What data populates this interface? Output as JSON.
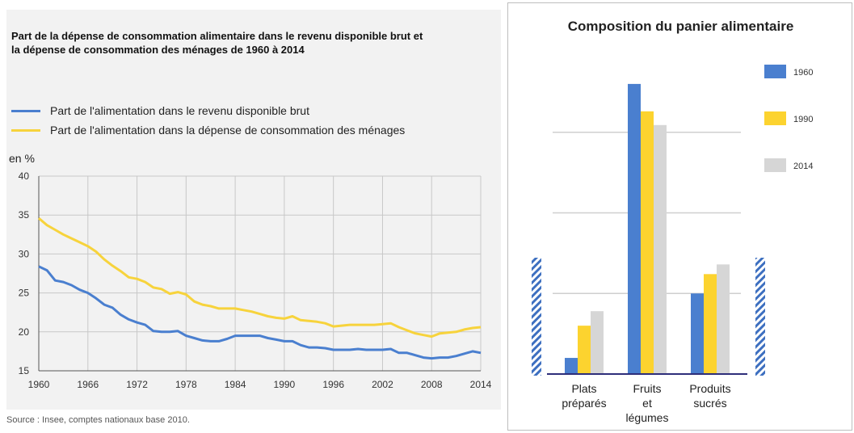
{
  "left_chart": {
    "title": "Part de la dépense de consommation alimentaire dans le revenu disponible brut et la dépense de consommation des ménages de 1960 à 2014",
    "ylabel": "en %",
    "source": "Source : Insee, comptes nationaux base 2010.",
    "colors": {
      "series1": "#4a7fcf",
      "series2": "#f7d33c"
    }
  },
  "right_chart": {
    "title": "Composition du panier alimentaire",
    "colors": {
      "1960": "#4a7fcf",
      "1990": "#fcd32f",
      "2014": "#d6d6d6"
    }
  },
  "chart_data": [
    {
      "type": "line",
      "title": "Part de la dépense de consommation alimentaire dans le revenu disponible brut et la dépense de consommation des ménages de 1960 à 2014",
      "ylabel": "en %",
      "xlim": [
        1960,
        2014
      ],
      "ylim": [
        15,
        40
      ],
      "xticks": [
        1960,
        1966,
        1972,
        1978,
        1984,
        1990,
        1996,
        2002,
        2008,
        2014
      ],
      "yticks": [
        15,
        20,
        25,
        30,
        35,
        40
      ],
      "grid": true,
      "x": [
        1960,
        1961,
        1962,
        1963,
        1964,
        1965,
        1966,
        1967,
        1968,
        1969,
        1970,
        1971,
        1972,
        1973,
        1974,
        1975,
        1976,
        1977,
        1978,
        1979,
        1980,
        1981,
        1982,
        1983,
        1984,
        1985,
        1986,
        1987,
        1988,
        1989,
        1990,
        1991,
        1992,
        1993,
        1994,
        1995,
        1996,
        1997,
        1998,
        1999,
        2000,
        2001,
        2002,
        2003,
        2004,
        2005,
        2006,
        2007,
        2008,
        2009,
        2010,
        2011,
        2012,
        2013,
        2014
      ],
      "series": [
        {
          "name": "Part de l'alimentation dans le revenu disponible brut",
          "values": [
            28.4,
            27.9,
            26.6,
            26.4,
            26.0,
            25.4,
            25.0,
            24.3,
            23.5,
            23.1,
            22.2,
            21.6,
            21.2,
            20.9,
            20.1,
            20.0,
            20.0,
            20.1,
            19.5,
            19.2,
            18.9,
            18.8,
            18.8,
            19.1,
            19.5,
            19.5,
            19.5,
            19.5,
            19.2,
            19.0,
            18.8,
            18.8,
            18.3,
            18.0,
            18.0,
            17.9,
            17.7,
            17.7,
            17.7,
            17.8,
            17.7,
            17.7,
            17.7,
            17.8,
            17.3,
            17.3,
            17.0,
            16.7,
            16.6,
            16.7,
            16.7,
            16.9,
            17.2,
            17.5,
            17.3
          ]
        },
        {
          "name": "Part de l'alimentation dans la dépense de consommation des ménages",
          "values": [
            34.6,
            33.7,
            33.1,
            32.5,
            32.0,
            31.5,
            31.0,
            30.3,
            29.3,
            28.5,
            27.8,
            27.0,
            26.8,
            26.4,
            25.7,
            25.5,
            24.9,
            25.1,
            24.8,
            23.9,
            23.5,
            23.3,
            23.0,
            23.0,
            23.0,
            22.8,
            22.6,
            22.3,
            22.0,
            21.8,
            21.7,
            22.0,
            21.5,
            21.4,
            21.3,
            21.1,
            20.7,
            20.8,
            20.9,
            20.9,
            20.9,
            20.9,
            21.0,
            21.1,
            20.6,
            20.2,
            19.8,
            19.6,
            19.4,
            19.8,
            19.9,
            20.0,
            20.3,
            20.5,
            20.6
          ]
        }
      ]
    },
    {
      "type": "bar",
      "title": "Composition du panier alimentaire",
      "categories": [
        "Plats préparés",
        "Fruits et légumes",
        "Produits sucrés"
      ],
      "category_lines": [
        [
          "Plats",
          "préparés"
        ],
        [
          "Fruits",
          "et",
          "légumes"
        ],
        [
          "Produits",
          "sucrés"
        ]
      ],
      "series": [
        {
          "name": "1960",
          "values": [
            0.2,
            3.6,
            1.0
          ]
        },
        {
          "name": "1990",
          "values": [
            0.6,
            3.26,
            1.24
          ]
        },
        {
          "name": "2014",
          "values": [
            0.78,
            3.09,
            1.36
          ]
        }
      ],
      "ylim": [
        0,
        4
      ],
      "grid": true,
      "legend": "right"
    }
  ]
}
